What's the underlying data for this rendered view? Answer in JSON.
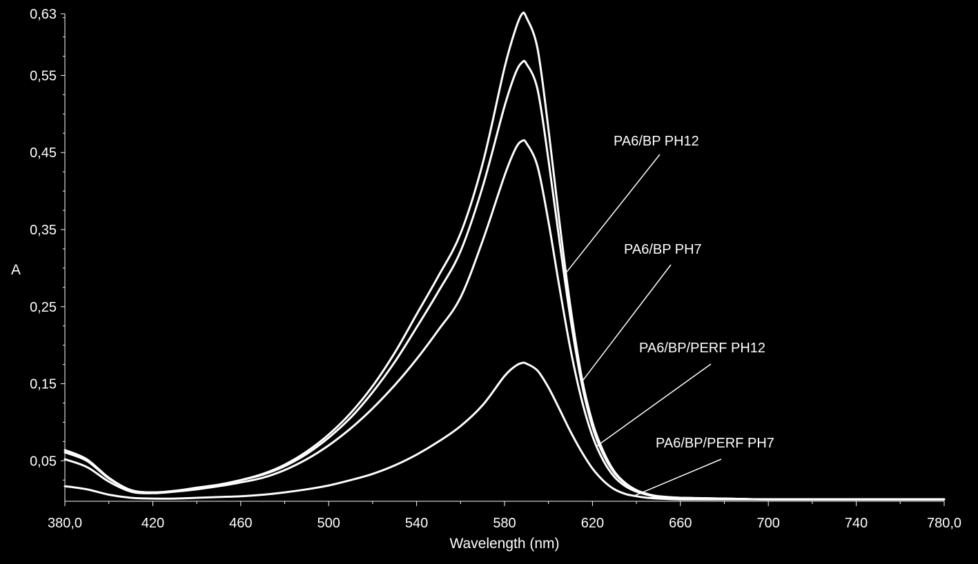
{
  "chart_data": {
    "type": "line",
    "title": "",
    "xlabel": "Wavelength (nm)",
    "ylabel": "A",
    "xlim": [
      380,
      780
    ],
    "ylim": [
      -0.0025,
      0.63
    ],
    "x_ticks": [
      380,
      420,
      460,
      500,
      540,
      580,
      620,
      660,
      700,
      740,
      780
    ],
    "x_tick_labels": [
      "380,0",
      "420",
      "460",
      "500",
      "540",
      "580",
      "620",
      "660",
      "700",
      "740",
      "780,0"
    ],
    "y_ticks": [
      0.05,
      0.15,
      0.25,
      0.35,
      0.45,
      0.55,
      0.63
    ],
    "y_tick_labels": [
      "0,05",
      "0,15",
      "0,25",
      "0,35",
      "0,45",
      "0,55",
      "0,63"
    ],
    "grid": false,
    "legend": "none",
    "background_color": "#000000",
    "line_color": "#ffffff",
    "x": [
      380,
      390,
      400,
      410,
      420,
      430,
      440,
      450,
      460,
      470,
      480,
      490,
      500,
      510,
      520,
      530,
      540,
      550,
      560,
      570,
      580,
      585,
      588,
      590,
      595,
      600,
      605,
      610,
      615,
      620,
      625,
      630,
      635,
      640,
      645,
      650,
      660,
      680,
      700,
      740,
      780
    ],
    "series": [
      {
        "name": "PA6/BP PH12",
        "values": [
          0.064,
          0.052,
          0.028,
          0.012,
          0.009,
          0.011,
          0.015,
          0.019,
          0.025,
          0.033,
          0.045,
          0.062,
          0.084,
          0.112,
          0.147,
          0.19,
          0.24,
          0.29,
          0.345,
          0.435,
          0.56,
          0.61,
          0.63,
          0.625,
          0.585,
          0.48,
          0.36,
          0.25,
          0.16,
          0.1,
          0.062,
          0.036,
          0.021,
          0.012,
          0.007,
          0.004,
          0.002,
          0.001,
          0.0,
          0.0,
          0.0
        ]
      },
      {
        "name": "PA6/BP PH7",
        "values": [
          0.061,
          0.05,
          0.027,
          0.012,
          0.009,
          0.011,
          0.015,
          0.019,
          0.025,
          0.032,
          0.043,
          0.059,
          0.08,
          0.106,
          0.139,
          0.178,
          0.223,
          0.27,
          0.322,
          0.405,
          0.51,
          0.553,
          0.567,
          0.565,
          0.532,
          0.44,
          0.335,
          0.235,
          0.152,
          0.094,
          0.058,
          0.034,
          0.02,
          0.011,
          0.006,
          0.004,
          0.002,
          0.001,
          0.0,
          0.0,
          0.0
        ]
      },
      {
        "name": "PA6/BP/PERF PH12",
        "values": [
          0.052,
          0.042,
          0.023,
          0.01,
          0.008,
          0.01,
          0.013,
          0.017,
          0.022,
          0.028,
          0.038,
          0.052,
          0.07,
          0.092,
          0.118,
          0.148,
          0.182,
          0.22,
          0.262,
          0.335,
          0.42,
          0.455,
          0.465,
          0.462,
          0.432,
          0.36,
          0.275,
          0.195,
          0.13,
          0.082,
          0.05,
          0.029,
          0.017,
          0.01,
          0.006,
          0.003,
          0.002,
          0.001,
          0.0,
          0.0,
          0.0
        ]
      },
      {
        "name": "PA6/BP/PERF PH7",
        "values": [
          0.017,
          0.013,
          0.006,
          0.002,
          0.001,
          0.001,
          0.002,
          0.003,
          0.004,
          0.006,
          0.009,
          0.013,
          0.018,
          0.025,
          0.033,
          0.044,
          0.058,
          0.075,
          0.095,
          0.122,
          0.16,
          0.173,
          0.177,
          0.176,
          0.167,
          0.145,
          0.117,
          0.088,
          0.062,
          0.04,
          0.024,
          0.013,
          0.007,
          0.004,
          0.002,
          0.001,
          0.0,
          0.0,
          0.0,
          0.0,
          0.0
        ]
      }
    ],
    "annotations": [
      {
        "label": "PA6/BP PH12",
        "series": "PA6/BP PH12",
        "point_x": 608
      },
      {
        "label": "PA6/BP PH7",
        "series": "PA6/BP PH7",
        "point_x": 615
      },
      {
        "label": "PA6/BP/PERF PH12",
        "series": "PA6/BP/PERF PH12",
        "point_x": 622
      },
      {
        "label": "PA6/BP/PERF PH7",
        "series": "PA6/BP/PERF PH7",
        "point_x": 639
      }
    ]
  }
}
